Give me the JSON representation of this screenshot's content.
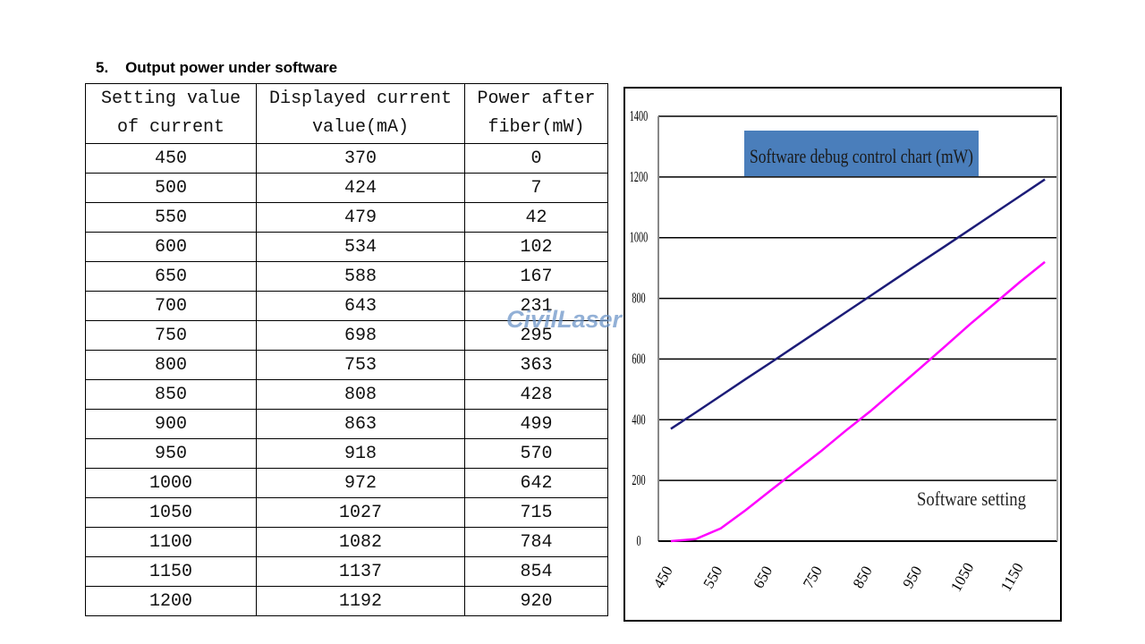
{
  "heading": "5.    Output power under software",
  "table": {
    "header": [
      "Setting value of current",
      "Displayed current value(mA)",
      "Power after fiber(mW)"
    ],
    "rows": [
      [
        450,
        370,
        0
      ],
      [
        500,
        424,
        7
      ],
      [
        550,
        479,
        42
      ],
      [
        600,
        534,
        102
      ],
      [
        650,
        588,
        167
      ],
      [
        700,
        643,
        231
      ],
      [
        750,
        698,
        295
      ],
      [
        800,
        753,
        363
      ],
      [
        850,
        808,
        428
      ],
      [
        900,
        863,
        499
      ],
      [
        950,
        918,
        570
      ],
      [
        1000,
        972,
        642
      ],
      [
        1050,
        1027,
        715
      ],
      [
        1100,
        1082,
        784
      ],
      [
        1150,
        1137,
        854
      ],
      [
        1200,
        1192,
        920
      ]
    ]
  },
  "watermark": "CivilLaser",
  "chart_data": {
    "type": "line",
    "title": "Software debug control chart (mW)",
    "annotation": "Software setting",
    "categories": [
      450,
      null,
      550,
      null,
      650,
      null,
      750,
      null,
      850,
      null,
      950,
      null,
      1050,
      null,
      1150,
      null
    ],
    "series": [
      {
        "color": "#1c1c78",
        "values": [
          370,
          424,
          479,
          534,
          588,
          643,
          698,
          753,
          808,
          863,
          918,
          972,
          1027,
          1082,
          1137,
          1192
        ]
      },
      {
        "color": "#ff00ff",
        "values": [
          0,
          7,
          42,
          102,
          167,
          231,
          295,
          363,
          428,
          499,
          570,
          642,
          715,
          784,
          854,
          920
        ]
      }
    ],
    "ylim": [
      0,
      1400
    ],
    "yticks": [
      0,
      200,
      400,
      600,
      800,
      1000,
      1200,
      1400
    ],
    "grid": true,
    "title_box_color": "#4a7ebb"
  }
}
